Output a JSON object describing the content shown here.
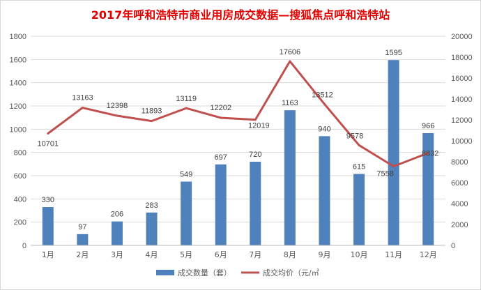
{
  "chart_data": {
    "type": "bar",
    "title": "2017年呼和浩特市商业用房成交数据—搜狐焦点呼和浩特站",
    "categories": [
      "1月",
      "2月",
      "3月",
      "4月",
      "5月",
      "6月",
      "7月",
      "8月",
      "9月",
      "10月",
      "11月",
      "12月"
    ],
    "series": [
      {
        "name": "成交数量（套）",
        "type": "bar",
        "axis": "left",
        "color": "#4f81bd",
        "values": [
          330,
          97,
          206,
          283,
          549,
          697,
          720,
          1163,
          940,
          615,
          1595,
          966
        ]
      },
      {
        "name": "成交均价（元/㎡",
        "type": "line",
        "axis": "right",
        "color": "#c0504d",
        "values": [
          10701,
          13163,
          12398,
          11893,
          13119,
          12202,
          12019,
          17606,
          13512,
          9578,
          7558,
          8832
        ]
      }
    ],
    "y_left": {
      "min": 0,
      "max": 1800,
      "ticks": [
        0,
        200,
        400,
        600,
        800,
        1000,
        1200,
        1400,
        1600,
        1800
      ]
    },
    "y_right": {
      "min": 0,
      "max": 20000,
      "ticks": [
        0,
        2000,
        4000,
        6000,
        8000,
        10000,
        12000,
        14000,
        16000,
        18000,
        20000
      ]
    },
    "grid": true,
    "legend_position": "bottom"
  }
}
